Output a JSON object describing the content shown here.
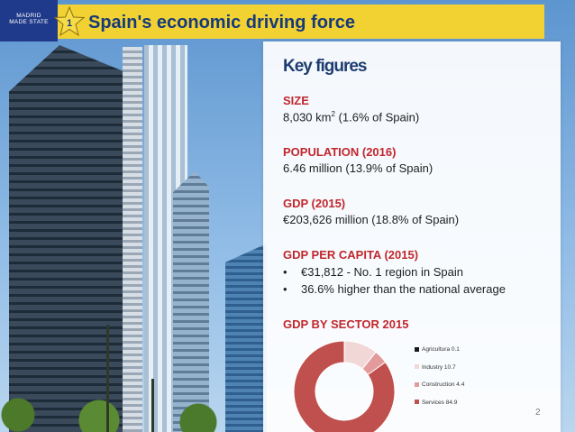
{
  "slide": {
    "logo_lines": [
      "MAD",
      "RID",
      "MADE",
      "STATE"
    ],
    "star_number": "1",
    "title": "Spain's economic driving force",
    "page_number": "2"
  },
  "key_figures": {
    "heading": "Key figures",
    "size_label": "SIZE",
    "size_value_main": "8,030 km",
    "size_value_sup": "2",
    "size_value_rest": " (1.6% of Spain)",
    "population_label": "POPULATION (2016)",
    "population_value": "6.46 million (13.9% of Spain)",
    "gdp_label": "GDP (2015)",
    "gdp_value": "€203,626 million (18.8% of Spain)",
    "gdp_pc_label": "GDP PER CAPITA (2015)",
    "gdp_pc_bullets": [
      {
        "mark": "•",
        "text": "€31,812 - No. 1 region in Spain"
      },
      {
        "mark": "•",
        "text": "36.6% higher than the national average"
      }
    ],
    "sector_label": "GDP BY SECTOR 2015"
  },
  "colors": {
    "title_bg": "#f2d233",
    "title_text": "#163a7a",
    "label_red": "#c1272d",
    "heading_navy": "#1e3d6f"
  },
  "chart_data": {
    "type": "pie",
    "title": "",
    "categories": [
      "Agricultura 0.1",
      "Industry 10.7",
      "Construction 4.4",
      "Services 84.9"
    ],
    "values": [
      0.1,
      10.7,
      4.4,
      84.9
    ],
    "colors": [
      "#1a1a1a",
      "#f2d7d7",
      "#e39a9a",
      "#c0504d"
    ],
    "legend_position": "right"
  }
}
